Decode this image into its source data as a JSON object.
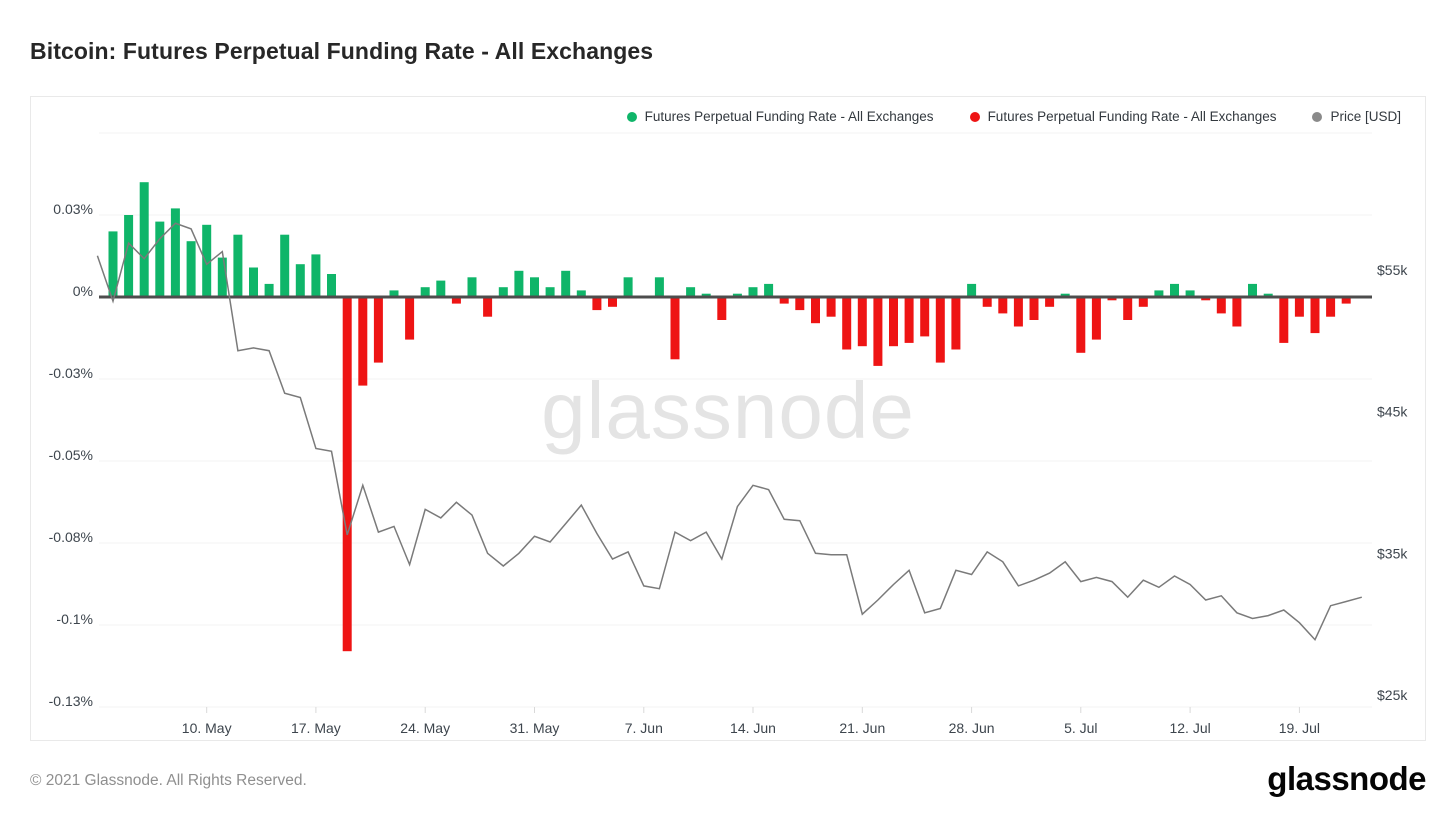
{
  "page": {
    "title": "Bitcoin: Futures Perpetual Funding Rate - All Exchanges",
    "footer_copyright": "© 2021 Glassnode. All Rights Reserved.",
    "brand_logo": "glassnode",
    "watermark": "glassnode"
  },
  "legend": {
    "items": [
      {
        "label": "Futures Perpetual Funding Rate - All Exchanges",
        "color": "#0fb569"
      },
      {
        "label": "Futures Perpetual Funding Rate - All Exchanges",
        "color": "#ee1414"
      },
      {
        "label": "Price [USD]",
        "color": "#8a8a8a"
      }
    ]
  },
  "chart_data": {
    "type": "bar",
    "title": "Bitcoin: Futures Perpetual Funding Rate - All Exchanges",
    "x": [
      "3. May",
      "4. May",
      "5. May",
      "6. May",
      "7. May",
      "8. May",
      "9. May",
      "10. May",
      "11. May",
      "12. May",
      "13. May",
      "14. May",
      "15. May",
      "16. May",
      "17. May",
      "18. May",
      "19. May",
      "20. May",
      "21. May",
      "22. May",
      "23. May",
      "24. May",
      "25. May",
      "26. May",
      "27. May",
      "28. May",
      "29. May",
      "30. May",
      "31. May",
      "1. Jun",
      "2. Jun",
      "3. Jun",
      "4. Jun",
      "5. Jun",
      "6. Jun",
      "7. Jun",
      "8. Jun",
      "9. Jun",
      "10. Jun",
      "11. Jun",
      "12. Jun",
      "13. Jun",
      "14. Jun",
      "15. Jun",
      "16. Jun",
      "17. Jun",
      "18. Jun",
      "19. Jun",
      "20. Jun",
      "21. Jun",
      "22. Jun",
      "23. Jun",
      "24. Jun",
      "25. Jun",
      "26. Jun",
      "27. Jun",
      "28. Jun",
      "29. Jun",
      "30. Jun",
      "1. Jul",
      "2. Jul",
      "3. Jul",
      "4. Jul",
      "5. Jul",
      "6. Jul",
      "7. Jul",
      "8. Jul",
      "9. Jul",
      "10. Jul",
      "11. Jul",
      "12. Jul",
      "13. Jul",
      "14. Jul",
      "15. Jul",
      "16. Jul",
      "17. Jul",
      "18. Jul",
      "19. Jul",
      "20. Jul",
      "21. Jul",
      "22. Jul",
      "23. Jul"
    ],
    "series": [
      {
        "name": "Futures Perpetual Funding Rate - All Exchanges",
        "type": "bar",
        "axis": "left",
        "unit": "%",
        "color_positive": "#0fb569",
        "color_negative": "#ee1414",
        "values": [
          null,
          0.02,
          0.025,
          0.035,
          0.023,
          0.027,
          0.017,
          0.022,
          0.012,
          0.019,
          0.009,
          0.004,
          0.019,
          0.01,
          0.013,
          0.007,
          -0.108,
          -0.027,
          -0.02,
          0.002,
          -0.013,
          0.003,
          0.005,
          -0.002,
          0.006,
          -0.006,
          0.003,
          0.008,
          0.006,
          0.003,
          0.008,
          0.002,
          -0.004,
          -0.003,
          0.006,
          0.0,
          0.006,
          -0.019,
          0.003,
          0.001,
          -0.007,
          0.001,
          0.003,
          0.004,
          -0.002,
          -0.004,
          -0.008,
          -0.006,
          -0.016,
          -0.015,
          -0.021,
          -0.015,
          -0.014,
          -0.012,
          -0.02,
          -0.016,
          0.004,
          -0.003,
          -0.005,
          -0.009,
          -0.007,
          -0.003,
          0.001,
          -0.017,
          -0.013,
          -0.001,
          -0.007,
          -0.003,
          0.002,
          0.004,
          0.002,
          -0.001,
          -0.005,
          -0.009,
          0.004,
          0.001,
          -0.014,
          -0.006,
          -0.011,
          -0.006,
          -0.002,
          null
        ]
      },
      {
        "name": "Price [USD]",
        "type": "line",
        "axis": "right",
        "unit": "USD thousands",
        "color": "#7a7a7a",
        "values": [
          56.0,
          52.8,
          56.9,
          55.8,
          57.2,
          58.3,
          57.9,
          55.4,
          56.3,
          49.3,
          49.5,
          49.3,
          46.3,
          46.0,
          42.4,
          42.2,
          36.3,
          39.8,
          36.5,
          36.9,
          34.2,
          38.1,
          37.5,
          38.6,
          37.7,
          35.0,
          34.1,
          35.0,
          36.2,
          35.8,
          37.1,
          38.4,
          36.4,
          34.6,
          35.1,
          32.7,
          32.5,
          36.5,
          35.9,
          36.5,
          34.6,
          38.3,
          39.8,
          39.5,
          37.4,
          37.3,
          35.0,
          34.9,
          34.9,
          30.7,
          31.7,
          32.8,
          33.8,
          30.8,
          31.1,
          33.8,
          33.5,
          35.1,
          34.4,
          32.7,
          33.1,
          33.6,
          34.4,
          33.0,
          33.3,
          33.0,
          31.9,
          33.1,
          32.6,
          33.4,
          32.8,
          31.7,
          32.0,
          30.8,
          30.4,
          30.6,
          31.0,
          30.1,
          28.9,
          31.3,
          31.6,
          31.9
        ]
      }
    ],
    "left_axis": {
      "title": "Funding rate",
      "ticks": [
        {
          "label": "0.03%",
          "value": 0.025
        },
        {
          "label": "0%",
          "value": 0
        },
        {
          "label": "-0.03%",
          "value": -0.025
        },
        {
          "label": "-0.05%",
          "value": -0.05
        },
        {
          "label": "-0.08%",
          "value": -0.075
        },
        {
          "label": "-0.1%",
          "value": -0.1
        },
        {
          "label": "-0.13%",
          "value": -0.125
        }
      ],
      "grid_values": [
        0.05,
        0.025,
        0,
        -0.025,
        -0.05,
        -0.075,
        -0.1,
        -0.125
      ],
      "range": [
        0.05,
        -0.125
      ]
    },
    "right_axis": {
      "title": "Price [USD]",
      "ticks": [
        {
          "label": "$55k",
          "value": 55
        },
        {
          "label": "$45k",
          "value": 45
        },
        {
          "label": "$35k",
          "value": 35
        },
        {
          "label": "$25k",
          "value": 25
        }
      ],
      "range": [
        58.5,
        25
      ]
    },
    "x_axis": {
      "ticks": [
        {
          "label": "10. May",
          "index": 7
        },
        {
          "label": "17. May",
          "index": 14
        },
        {
          "label": "24. May",
          "index": 21
        },
        {
          "label": "31. May",
          "index": 28
        },
        {
          "label": "7. Jun",
          "index": 35
        },
        {
          "label": "14. Jun",
          "index": 42
        },
        {
          "label": "21. Jun",
          "index": 49
        },
        {
          "label": "28. Jun",
          "index": 56
        },
        {
          "label": "5. Jul",
          "index": 63
        },
        {
          "label": "12. Jul",
          "index": 70
        },
        {
          "label": "19. Jul",
          "index": 77
        }
      ]
    },
    "grid": true,
    "legend_position": "top-right",
    "colors": {
      "grid_line": "#f3f3f3",
      "zero_line": "#4d4d4d",
      "axis_text": "#3d454d",
      "tick_mark": "#d9d9d9"
    }
  }
}
